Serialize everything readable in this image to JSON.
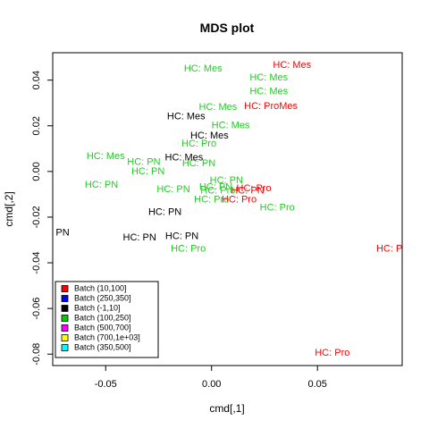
{
  "chart_data": {
    "type": "scatter",
    "title": "MDS plot",
    "xlabel": "cmd[,1]",
    "ylabel": "cmd[,2]",
    "xlim": [
      -0.075,
      0.09
    ],
    "ylim": [
      -0.085,
      0.052
    ],
    "x_ticks": [
      {
        "v": -0.05,
        "label": "-0.05"
      },
      {
        "v": 0.0,
        "label": "0.00"
      },
      {
        "v": 0.05,
        "label": "0.05"
      }
    ],
    "y_ticks": [
      {
        "v": -0.08,
        "label": "-0.08"
      },
      {
        "v": -0.06,
        "label": "-0.06"
      },
      {
        "v": -0.04,
        "label": "-0.04"
      },
      {
        "v": -0.02,
        "label": "-0.02"
      },
      {
        "v": 0.0,
        "label": "0.00"
      },
      {
        "v": 0.02,
        "label": "0.02"
      },
      {
        "v": 0.04,
        "label": "0.04"
      }
    ],
    "colors": {
      "red": "#ff0000",
      "green": "#22cc22",
      "black": "#000000"
    },
    "points": [
      {
        "x": 0.038,
        "y": 0.0465,
        "label": "HC: Mes",
        "color": "red"
      },
      {
        "x": 0.028,
        "y": 0.0285,
        "label": "HC: ProMes",
        "color": "red"
      },
      {
        "x": 0.02,
        "y": -0.0075,
        "label": "HC: Pro",
        "color": "red"
      },
      {
        "x": 0.017,
        "y": -0.0085,
        "label": "HC: PN",
        "color": "red"
      },
      {
        "x": 0.013,
        "y": -0.0125,
        "label": "HC: Pro",
        "color": "red"
      },
      {
        "x": 0.086,
        "y": -0.034,
        "label": "HC: Pro",
        "color": "red"
      },
      {
        "x": 0.057,
        "y": -0.0795,
        "label": "HC: Pro",
        "color": "red"
      },
      {
        "x": -0.004,
        "y": 0.045,
        "label": "HC: Mes",
        "color": "green"
      },
      {
        "x": 0.027,
        "y": 0.041,
        "label": "HC: Mes",
        "color": "green"
      },
      {
        "x": 0.027,
        "y": 0.035,
        "label": "HC: Mes",
        "color": "green"
      },
      {
        "x": 0.003,
        "y": 0.028,
        "label": "HC: Mes",
        "color": "green"
      },
      {
        "x": 0.009,
        "y": 0.02,
        "label": "HC: Mes",
        "color": "green"
      },
      {
        "x": -0.006,
        "y": 0.012,
        "label": "HC: Pro",
        "color": "green"
      },
      {
        "x": -0.05,
        "y": 0.0065,
        "label": "HC: Mes",
        "color": "green"
      },
      {
        "x": -0.032,
        "y": 0.004,
        "label": "HC: PN",
        "color": "green"
      },
      {
        "x": -0.006,
        "y": 0.0035,
        "label": "HC: PN",
        "color": "green"
      },
      {
        "x": -0.03,
        "y": 0.0,
        "label": "HC: PN",
        "color": "green"
      },
      {
        "x": -0.052,
        "y": -0.006,
        "label": "HC: PN",
        "color": "green"
      },
      {
        "x": -0.018,
        "y": -0.008,
        "label": "HC: PN",
        "color": "green"
      },
      {
        "x": 0.007,
        "y": -0.004,
        "label": "HC: PN",
        "color": "green"
      },
      {
        "x": 0.002,
        "y": -0.007,
        "label": "HC: PN",
        "color": "green"
      },
      {
        "x": 0.003,
        "y": -0.0085,
        "label": "HC: Pro",
        "color": "green"
      },
      {
        "x": 0.0,
        "y": -0.0125,
        "label": "HC: Pro",
        "color": "green"
      },
      {
        "x": 0.031,
        "y": -0.016,
        "label": "HC: Pro",
        "color": "green"
      },
      {
        "x": -0.011,
        "y": -0.034,
        "label": "HC: Pro",
        "color": "green"
      },
      {
        "x": -0.012,
        "y": 0.024,
        "label": "HC: Mes",
        "color": "black"
      },
      {
        "x": -0.001,
        "y": 0.0155,
        "label": "HC: Mes",
        "color": "black"
      },
      {
        "x": -0.013,
        "y": 0.006,
        "label": "HC: Mes",
        "color": "black"
      },
      {
        "x": -0.022,
        "y": -0.018,
        "label": "HC: PN",
        "color": "black"
      },
      {
        "x": -0.075,
        "y": -0.027,
        "label": "HC: PN",
        "color": "black"
      },
      {
        "x": -0.034,
        "y": -0.029,
        "label": "HC: PN",
        "color": "black"
      },
      {
        "x": -0.014,
        "y": -0.0285,
        "label": "HC: PN",
        "color": "black"
      }
    ],
    "legend": {
      "placement": "bottom-left",
      "entries": [
        {
          "label": "Batch (10,100]",
          "color": "#ff0000"
        },
        {
          "label": "Batch (250,350]",
          "color": "#0000ff"
        },
        {
          "label": "Batch (-1,10]",
          "color": "#000000"
        },
        {
          "label": "Batch (100,250]",
          "color": "#00cc00"
        },
        {
          "label": "Batch (500,700]",
          "color": "#ff00ff"
        },
        {
          "label": "Batch (700,1e+03]",
          "color": "#ffff00"
        },
        {
          "label": "Batch (350,500]",
          "color": "#00ffff"
        }
      ]
    }
  }
}
